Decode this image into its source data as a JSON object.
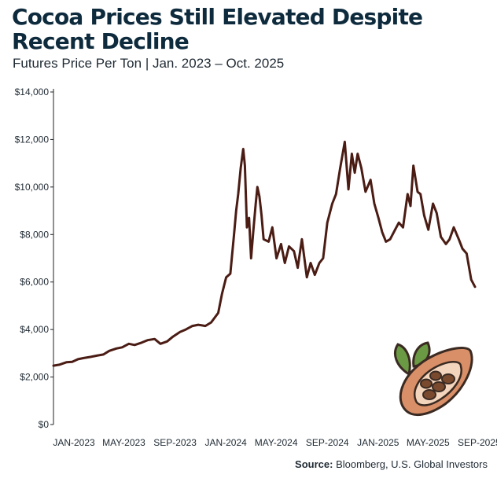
{
  "title": "Cocoa Prices Still Elevated Despite Recent Decline",
  "subtitle": "Futures Price Per Ton | Jan. 2023 – Oct. 2025",
  "source": {
    "label": "Source:",
    "text": "Bloomberg, U.S. Global Investors"
  },
  "colors": {
    "line": "#4a1c14",
    "title": "#0e2b3d",
    "axis": "#222222",
    "text": "#1f2a33"
  },
  "icon": "cocoa-pod-icon",
  "chart_data": {
    "type": "line",
    "title": "Cocoa Prices Still Elevated Despite Recent Decline",
    "subtitle": "Futures Price Per Ton | Jan. 2023 – Oct. 2025",
    "xlabel": "",
    "ylabel": "",
    "ylim": [
      0,
      14000
    ],
    "xlim": [
      "2023-01",
      "2025-10"
    ],
    "grid": false,
    "legend": "none",
    "yticks": [
      {
        "value": 0,
        "label": "$0"
      },
      {
        "value": 2000,
        "label": "$2,000"
      },
      {
        "value": 4000,
        "label": "$4,000"
      },
      {
        "value": 6000,
        "label": "$6,000"
      },
      {
        "value": 8000,
        "label": "$8,000"
      },
      {
        "value": 10000,
        "label": "$10,000"
      },
      {
        "value": 12000,
        "label": "$12,000"
      },
      {
        "value": 14000,
        "label": "$14,000"
      }
    ],
    "xticks": [
      {
        "value": "2023-01",
        "label": "JAN-2023"
      },
      {
        "value": "2023-05",
        "label": "MAY-2023"
      },
      {
        "value": "2023-09",
        "label": "SEP-2023"
      },
      {
        "value": "2024-01",
        "label": "JAN-2024"
      },
      {
        "value": "2024-05",
        "label": "MAY-2024"
      },
      {
        "value": "2024-09",
        "label": "SEP-2024"
      },
      {
        "value": "2025-01",
        "label": "JAN-2025"
      },
      {
        "value": "2025-05",
        "label": "MAY-2025"
      },
      {
        "value": "2025-09",
        "label": "SEP-2025"
      }
    ],
    "series": [
      {
        "x": [
          "2023-01-01",
          "2023-01-15",
          "2023-02-01",
          "2023-02-15",
          "2023-03-01",
          "2023-03-15",
          "2023-04-01",
          "2023-04-15",
          "2023-05-01",
          "2023-05-15",
          "2023-06-01",
          "2023-06-15",
          "2023-07-01",
          "2023-07-15",
          "2023-08-01",
          "2023-08-15",
          "2023-09-01",
          "2023-09-15",
          "2023-10-01",
          "2023-10-15",
          "2023-11-01",
          "2023-11-15",
          "2023-12-01",
          "2023-12-15",
          "2024-01-01",
          "2024-01-15",
          "2024-02-01",
          "2024-02-10",
          "2024-02-20",
          "2024-03-01",
          "2024-03-10",
          "2024-03-15",
          "2024-03-20",
          "2024-03-26",
          "2024-04-01",
          "2024-04-05",
          "2024-04-10",
          "2024-04-15",
          "2024-04-20",
          "2024-04-25",
          "2024-05-01",
          "2024-05-05",
          "2024-05-10",
          "2024-05-15",
          "2024-05-20",
          "2024-06-01",
          "2024-06-10",
          "2024-06-20",
          "2024-07-01",
          "2024-07-10",
          "2024-07-20",
          "2024-08-01",
          "2024-08-10",
          "2024-08-20",
          "2024-09-01",
          "2024-09-10",
          "2024-09-20",
          "2024-10-01",
          "2024-10-10",
          "2024-10-20",
          "2024-11-01",
          "2024-11-10",
          "2024-11-20",
          "2024-12-01",
          "2024-12-10",
          "2024-12-18",
          "2024-12-25",
          "2025-01-01",
          "2025-01-10",
          "2025-01-20",
          "2025-02-01",
          "2025-02-10",
          "2025-02-20",
          "2025-03-01",
          "2025-03-10",
          "2025-03-20",
          "2025-04-01",
          "2025-04-10",
          "2025-04-20",
          "2025-05-01",
          "2025-05-08",
          "2025-05-15",
          "2025-05-25",
          "2025-06-01",
          "2025-06-10",
          "2025-06-20",
          "2025-07-01",
          "2025-07-10",
          "2025-07-20",
          "2025-08-01",
          "2025-08-10",
          "2025-08-20",
          "2025-09-01",
          "2025-09-10",
          "2025-09-20",
          "2025-10-01",
          "2025-10-10"
        ],
        "y": [
          2480,
          2520,
          2620,
          2640,
          2750,
          2800,
          2850,
          2900,
          2950,
          3100,
          3200,
          3250,
          3400,
          3350,
          3450,
          3550,
          3600,
          3400,
          3500,
          3700,
          3900,
          4000,
          4150,
          4200,
          4150,
          4300,
          4700,
          5500,
          6200,
          6350,
          8000,
          9000,
          9700,
          10800,
          11600,
          10900,
          8300,
          8700,
          7000,
          8100,
          9300,
          10000,
          9600,
          8800,
          7800,
          7700,
          8300,
          7000,
          7600,
          6800,
          7500,
          7300,
          6600,
          7800,
          6200,
          6800,
          6300,
          6800,
          7000,
          8500,
          9300,
          9700,
          10800,
          11900,
          9900,
          11400,
          10600,
          11400,
          10800,
          9800,
          10300,
          9300,
          8700,
          8100,
          7700,
          7800,
          8200,
          8500,
          8300,
          9700,
          9200,
          10900,
          9800,
          9700,
          8800,
          8200,
          9300,
          8900,
          7900,
          7600,
          7800,
          8300,
          7800,
          7400,
          7200,
          6100,
          5800
        ]
      }
    ]
  }
}
